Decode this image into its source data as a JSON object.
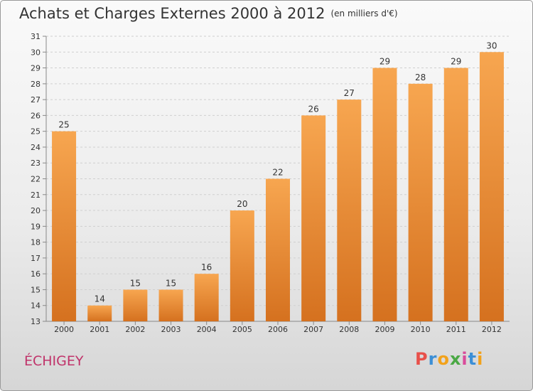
{
  "header": {
    "title": "Achats et Charges Externes 2000 à 2012",
    "unit": "(en milliers d'€)"
  },
  "footer": {
    "commune": "ÉCHIGEY",
    "brand": "Proxiti"
  },
  "colors": {
    "bar_light": "#f7a650",
    "bar_dark": "#d5711f",
    "commune": "#c0336a",
    "brand_letters": [
      "#e8504a",
      "#3c8fd6",
      "#f2a21b",
      "#4aa844",
      "#d94b9b",
      "#3c8fd6",
      "#f2a21b"
    ]
  },
  "chart_data": {
    "type": "bar",
    "title": "Achats et Charges Externes 2000 à 2012",
    "subtitle": "(en milliers d'€)",
    "categories": [
      "2000",
      "2001",
      "2002",
      "2003",
      "2004",
      "2005",
      "2006",
      "2007",
      "2008",
      "2009",
      "2010",
      "2011",
      "2012"
    ],
    "values": [
      25,
      14,
      15,
      15,
      16,
      20,
      22,
      26,
      27,
      29,
      28,
      29,
      30
    ],
    "ylim": [
      13,
      31
    ],
    "yticks": [
      13,
      14,
      15,
      16,
      17,
      18,
      19,
      20,
      21,
      22,
      23,
      24,
      25,
      26,
      27,
      28,
      29,
      30,
      31
    ],
    "grid": true,
    "data_labels": true,
    "xlabel": "",
    "ylabel": ""
  }
}
